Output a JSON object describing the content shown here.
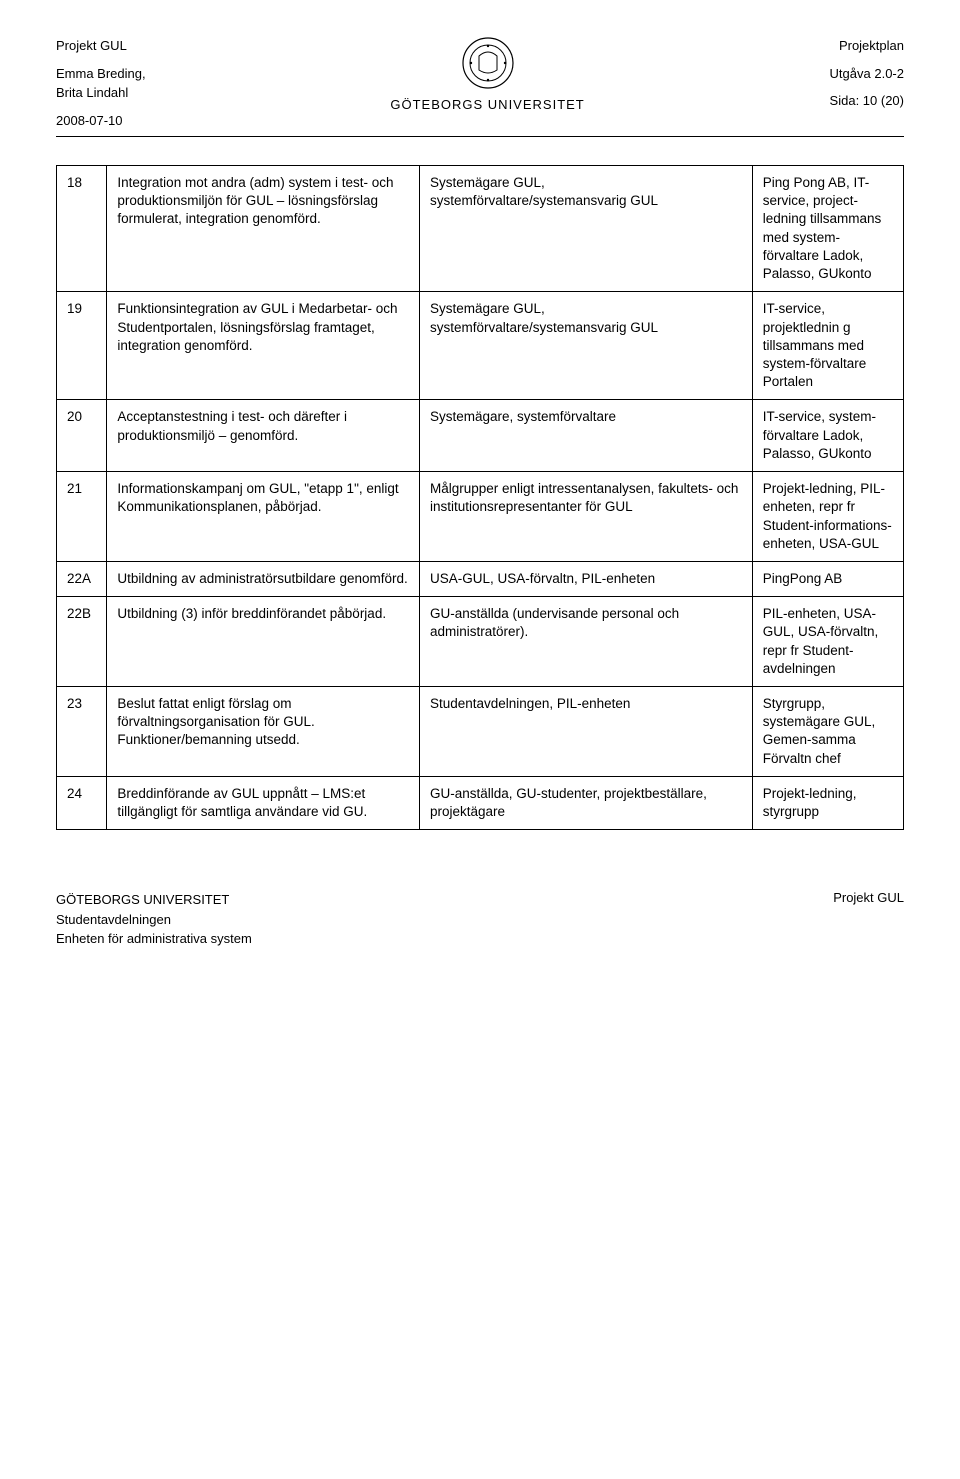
{
  "header": {
    "left": {
      "project": "Projekt GUL",
      "authors": "Emma Breding,\nBrita Lindahl",
      "date": "2008-07-10"
    },
    "center": {
      "university": "GÖTEBORGS UNIVERSITET"
    },
    "right": {
      "doc": "Projektplan",
      "edition": "Utgåva 2.0-2",
      "page": "Sida: 10 (20)"
    }
  },
  "rows": [
    {
      "num": "18",
      "desc": "Integration mot andra (adm) system i test- och produktionsmiljön för GUL – lösningsförslag formulerat, integration genomförd.",
      "who": "Systemägare GUL, systemförvaltare/systemansvarig GUL",
      "resp": "Ping Pong AB, IT-service, project-ledning tillsammans med system-förvaltare Ladok, Palasso, GUkonto"
    },
    {
      "num": "19",
      "desc": "Funktionsintegration av GUL i Medarbetar- och Studentportalen, lösningsförslag framtaget, integration genomförd.",
      "who": "Systemägare GUL, systemförvaltare/systemansvarig GUL",
      "resp": "IT-service, projektlednin g tillsammans med system-förvaltare Portalen"
    },
    {
      "num": "20",
      "desc": "Acceptanstestning i test- och därefter i produktionsmiljö – genomförd.",
      "who": "Systemägare, systemförvaltare",
      "resp": "IT-service, system-förvaltare Ladok, Palasso, GUkonto"
    },
    {
      "num": "21",
      "desc": "Informationskampanj om GUL, \"etapp 1\", enligt Kommunikationsplanen, påbörjad.",
      "who": "Målgrupper enligt intressentanalysen, fakultets- och institutionsrepresentanter för GUL",
      "resp": "Projekt-ledning, PIL-enheten, repr fr Student-informations-enheten, USA-GUL"
    },
    {
      "num": "22A",
      "desc": "Utbildning av administratörsutbildare genomförd.",
      "who": "USA-GUL, USA-förvaltn, PIL-enheten",
      "resp": "PingPong AB"
    },
    {
      "num": "22B",
      "desc": "Utbildning (3) inför breddinförandet påbörjad.",
      "who": "GU-anställda (undervisande personal och administratörer).",
      "resp": "PIL-enheten, USA-GUL, USA-förvaltn, repr fr Student-avdelningen"
    },
    {
      "num": "23",
      "desc": "Beslut fattat enligt förslag om förvaltningsorganisation för GUL. Funktioner/bemanning utsedd.",
      "who": "Studentavdelningen, PIL-enheten",
      "resp": "Styrgrupp, systemägare GUL, Gemen-samma Förvaltn chef"
    },
    {
      "num": "24",
      "desc": "Breddinförande av GUL uppnått – LMS:et tillgängligt för samtliga användare vid GU.",
      "who": "GU-anställda, GU-studenter, projektbeställare, projektägare",
      "resp": "Projekt-ledning, styrgrupp"
    }
  ],
  "footer": {
    "left1": "GÖTEBORGS UNIVERSITET",
    "left2": "Studentavdelningen",
    "left3": "Enheten för administrativa system",
    "right": "Projekt GUL"
  }
}
